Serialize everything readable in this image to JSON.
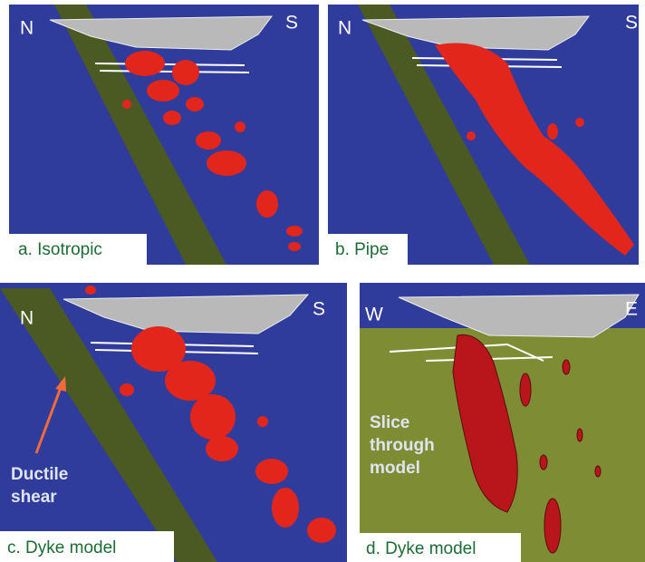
{
  "panels": [
    {
      "left": "N",
      "right": "S",
      "caption": "a. Isotropic"
    },
    {
      "left": "N",
      "right": "S",
      "caption": "b. Pipe"
    },
    {
      "left": "N",
      "right": "S",
      "caption": "c. Dyke model",
      "annotation": [
        "Ductile",
        "shear"
      ]
    },
    {
      "left": "W",
      "right": "E",
      "caption": "d. Dyke model",
      "annotation": [
        "Slice",
        "through",
        "model"
      ]
    }
  ]
}
